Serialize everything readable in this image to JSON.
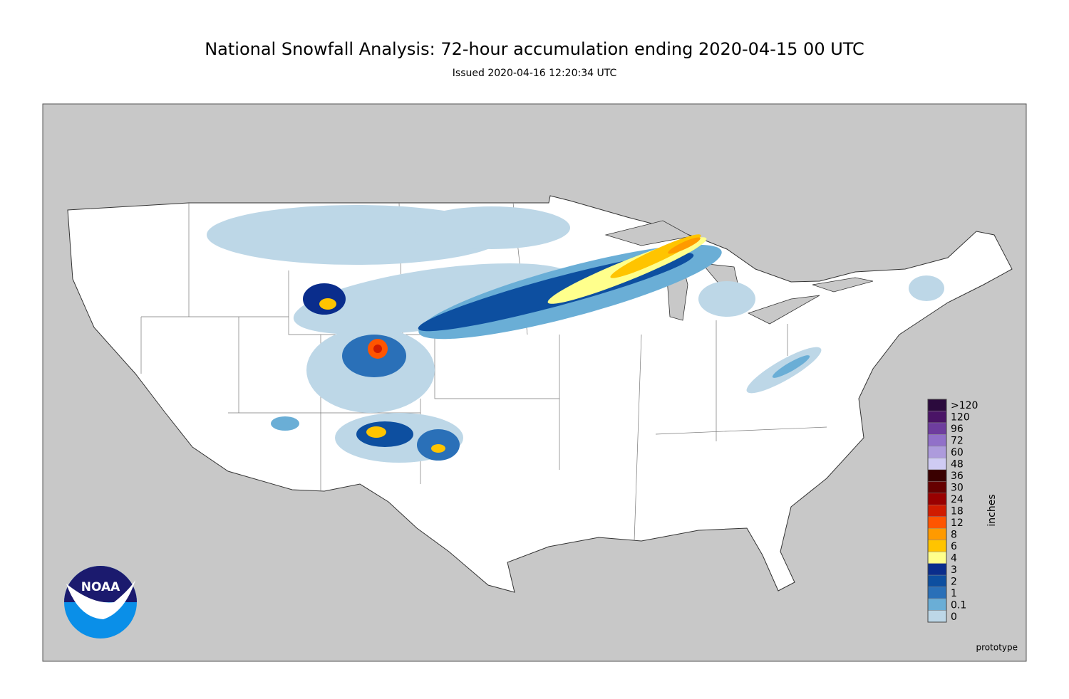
{
  "header": {
    "title": "National Snowfall Analysis: 72-hour accumulation ending 2020-04-15 00 UTC",
    "subtitle": "Issued 2020-04-16 12:20:34 UTC"
  },
  "legend": {
    "unit": "inches",
    "bins": [
      {
        "label": ">120",
        "color": "#2b0a3d"
      },
      {
        "label": "120",
        "color": "#4a1466"
      },
      {
        "label": "96",
        "color": "#6e3d9e"
      },
      {
        "label": "72",
        "color": "#9170c9"
      },
      {
        "label": "60",
        "color": "#ad9bdc"
      },
      {
        "label": "48",
        "color": "#cfcbf3"
      },
      {
        "label": "36",
        "color": "#3a0000"
      },
      {
        "label": "30",
        "color": "#660000"
      },
      {
        "label": "24",
        "color": "#990000"
      },
      {
        "label": "18",
        "color": "#d01c00"
      },
      {
        "label": "12",
        "color": "#ff5500"
      },
      {
        "label": "8",
        "color": "#ff9a00"
      },
      {
        "label": "6",
        "color": "#ffc400"
      },
      {
        "label": "4",
        "color": "#ffff8c"
      },
      {
        "label": "3",
        "color": "#0a2d8c"
      },
      {
        "label": "2",
        "color": "#0d4fa0"
      },
      {
        "label": "1",
        "color": "#2a70b8"
      },
      {
        "label": "0.1",
        "color": "#6aaed6"
      },
      {
        "label": "0",
        "color": "#bdd7e7"
      }
    ]
  },
  "logo": {
    "text": "NOAA"
  },
  "footer": {
    "note": "prototype"
  }
}
